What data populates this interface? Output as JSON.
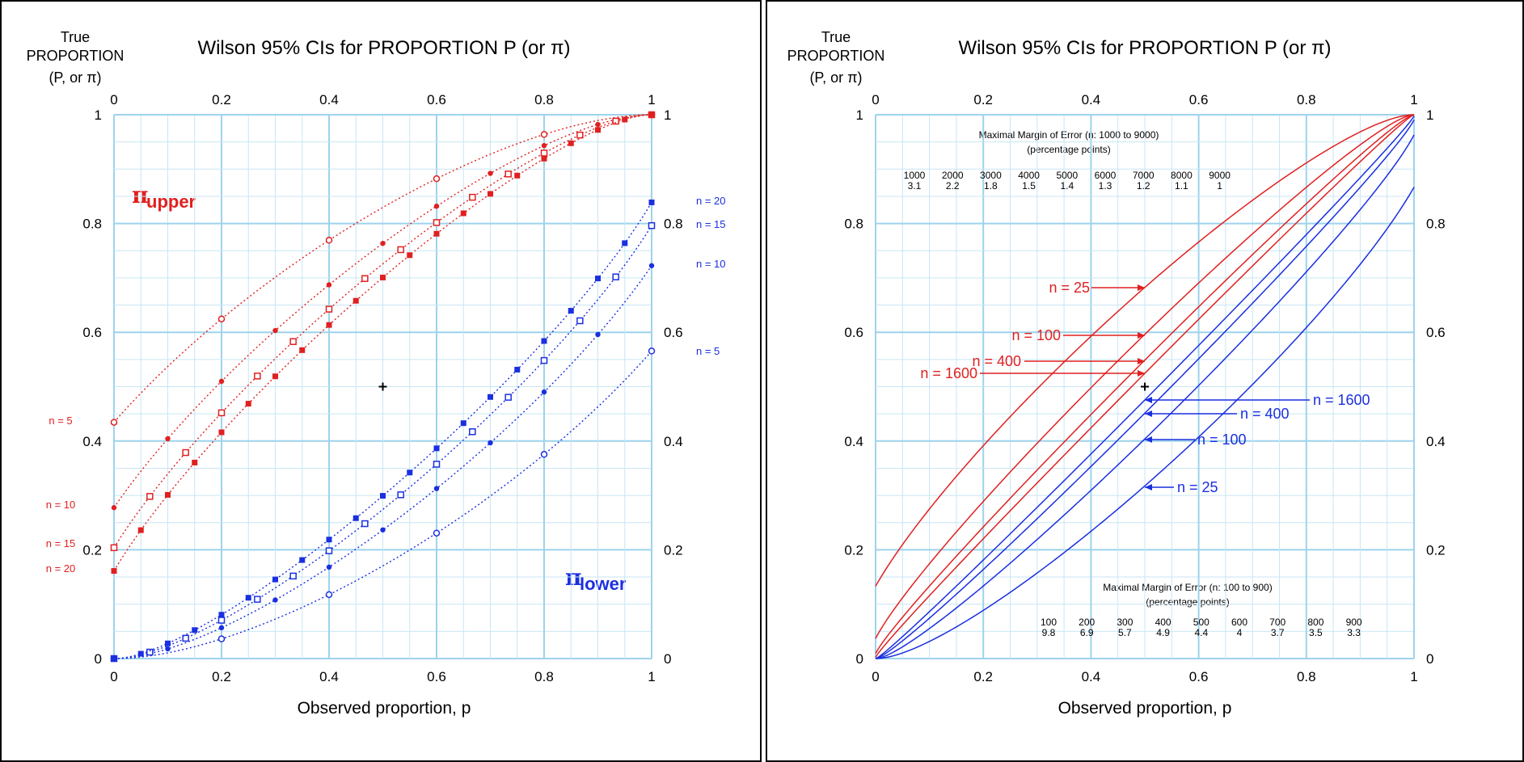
{
  "colors": {
    "upper": "#e02020",
    "lower": "#1a2fe0",
    "grid_major": "#9dd3ec",
    "grid_minor": "#c8e6f4"
  },
  "chart_data": [
    {
      "type": "line",
      "title": "Wilson 95% CIs for PROPORTION P (or π)",
      "ylabel_lines": [
        "True",
        "PROPORTION",
        "(P, or π)"
      ],
      "xlabel": "Observed proportion, p",
      "xlim": [
        0,
        1
      ],
      "ylim": [
        0,
        1
      ],
      "x_ticks": [
        "0",
        "0.2",
        "0.4",
        "0.6",
        "0.8",
        "1"
      ],
      "y_ticks": [
        "0",
        "0.2",
        "0.4",
        "0.6",
        "0.8",
        "1"
      ],
      "grid": true,
      "center_marker": {
        "x": 0.5,
        "y": 0.5
      },
      "upper_label": {
        "main": "π",
        "sub": "upper"
      },
      "lower_label": {
        "main": "π",
        "sub": "lower"
      },
      "series": [
        {
          "name": "n = 5",
          "n": 5,
          "bound": "upper",
          "marker": "open-circle"
        },
        {
          "name": "n = 10",
          "n": 10,
          "bound": "upper",
          "marker": "filled-circle"
        },
        {
          "name": "n = 15",
          "n": 15,
          "bound": "upper",
          "marker": "open-square"
        },
        {
          "name": "n = 20",
          "n": 20,
          "bound": "upper",
          "marker": "filled-square"
        },
        {
          "name": "n = 5",
          "n": 5,
          "bound": "lower",
          "marker": "open-circle"
        },
        {
          "name": "n = 10",
          "n": 10,
          "bound": "lower",
          "marker": "filled-circle"
        },
        {
          "name": "n = 15",
          "n": 15,
          "bound": "lower",
          "marker": "open-square"
        },
        {
          "name": "n = 20",
          "n": 20,
          "bound": "lower",
          "marker": "filled-square"
        }
      ],
      "upper_intercepts": [
        {
          "label": "n = 5",
          "y": 0.434
        },
        {
          "label": "n = 10",
          "y": 0.278
        },
        {
          "label": "n = 15",
          "y": 0.204
        },
        {
          "label": "n = 20",
          "y": 0.161
        }
      ],
      "lower_end_values": [
        {
          "label": "n = 20",
          "y": 0.839
        },
        {
          "label": "n = 15",
          "y": 0.796
        },
        {
          "label": "n = 10",
          "y": 0.722
        },
        {
          "label": "n = 5",
          "y": 0.566
        }
      ]
    },
    {
      "type": "line",
      "title": "Wilson 95% CIs for PROPORTION P (or π)",
      "ylabel_lines": [
        "True",
        "PROPORTION",
        "(P, or π)"
      ],
      "xlabel": "Observed proportion, p",
      "xlim": [
        0,
        1
      ],
      "ylim": [
        0,
        1
      ],
      "x_ticks": [
        "0",
        "0.2",
        "0.4",
        "0.6",
        "0.8",
        "1"
      ],
      "y_ticks": [
        "0",
        "0.2",
        "0.4",
        "0.6",
        "0.8",
        "1"
      ],
      "grid": true,
      "center_marker": {
        "x": 0.5,
        "y": 0.5
      },
      "series": [
        {
          "name": "n = 25",
          "n": 25,
          "bound": "upper"
        },
        {
          "name": "n = 100",
          "n": 100,
          "bound": "upper"
        },
        {
          "name": "n = 400",
          "n": 400,
          "bound": "upper"
        },
        {
          "name": "n = 1600",
          "n": 1600,
          "bound": "upper"
        },
        {
          "name": "n = 1600",
          "n": 1600,
          "bound": "lower"
        },
        {
          "name": "n = 400",
          "n": 400,
          "bound": "lower"
        },
        {
          "name": "n = 100",
          "n": 100,
          "bound": "lower"
        },
        {
          "name": "n = 25",
          "n": 25,
          "bound": "lower"
        }
      ],
      "moe_table_large": {
        "title": "Maximal Margin of Error (n: 1000 to 9000)",
        "subtitle": "(percentage points)",
        "n": [
          "1000",
          "2000",
          "3000",
          "4000",
          "5000",
          "6000",
          "7000",
          "8000",
          "9000"
        ],
        "moe": [
          "3.1",
          "2.2",
          "1.8",
          "1.5",
          "1.4",
          "1.3",
          "1.2",
          "1.1",
          "1"
        ]
      },
      "moe_table_small": {
        "title": "Maximal Margin of Error (n: 100 to 900)",
        "subtitle": "(percentage points)",
        "n": [
          "100",
          "200",
          "300",
          "400",
          "500",
          "600",
          "700",
          "800",
          "900"
        ],
        "moe": [
          "9.8",
          "6.9",
          "5.7",
          "4.9",
          "4.4",
          "4",
          "3.7",
          "3.5",
          "3.3"
        ]
      }
    }
  ]
}
